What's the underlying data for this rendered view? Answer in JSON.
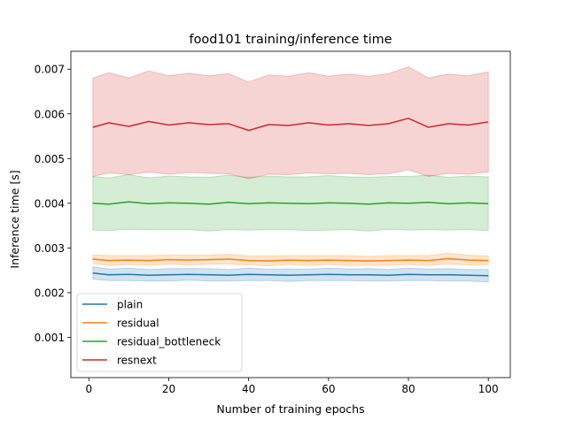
{
  "chart_data": {
    "type": "line",
    "title": "food101 training/inference time",
    "xlabel": "Number of training epochs",
    "ylabel": "Inference time [s]",
    "xlim": [
      -4.5,
      105.5
    ],
    "ylim": [
      0.0001,
      0.0074
    ],
    "xticks": [
      0,
      20,
      40,
      60,
      80,
      100
    ],
    "yticks": [
      0.001,
      0.002,
      0.003,
      0.004,
      0.005,
      0.006,
      0.007
    ],
    "xtick_labels": [
      "0",
      "20",
      "40",
      "60",
      "80",
      "100"
    ],
    "ytick_labels": [
      "0.001",
      "0.002",
      "0.003",
      "0.004",
      "0.005",
      "0.006",
      "0.007"
    ],
    "legend_position": "lower-left",
    "grid": false,
    "shaded_band": "per-series spread around the mean line",
    "x": [
      1,
      5,
      10,
      15,
      20,
      25,
      30,
      35,
      40,
      45,
      50,
      55,
      60,
      65,
      70,
      75,
      80,
      85,
      90,
      95,
      100
    ],
    "series": [
      {
        "name": "plain",
        "color": "#1f77b4",
        "values": [
          0.00244,
          0.0024,
          0.00241,
          0.00239,
          0.0024,
          0.00241,
          0.0024,
          0.00239,
          0.00241,
          0.0024,
          0.00239,
          0.0024,
          0.00241,
          0.0024,
          0.0024,
          0.00239,
          0.00241,
          0.0024,
          0.0024,
          0.00239,
          0.00238
        ],
        "band_halfwidth": [
          0.00014,
          0.00013,
          0.00014,
          0.00013,
          0.00014,
          0.00013,
          0.00014,
          0.00013,
          0.00014,
          0.00013,
          0.00014,
          0.00013,
          0.00014,
          0.00013,
          0.00014,
          0.00013,
          0.00014,
          0.00013,
          0.00014,
          0.00013,
          0.00014
        ]
      },
      {
        "name": "residual",
        "color": "#ff7f0e",
        "values": [
          0.00275,
          0.00272,
          0.00273,
          0.00272,
          0.00274,
          0.00273,
          0.00274,
          0.00275,
          0.00272,
          0.00271,
          0.00273,
          0.00272,
          0.00273,
          0.00272,
          0.00271,
          0.00272,
          0.00273,
          0.00272,
          0.00276,
          0.00273,
          0.00272
        ],
        "band_halfwidth": [
          0.0001,
          0.00011,
          0.0001,
          0.00011,
          0.0001,
          0.00011,
          0.0001,
          0.00011,
          0.0001,
          0.00011,
          0.0001,
          0.00011,
          0.0001,
          0.00011,
          0.0001,
          0.00011,
          0.0001,
          0.00011,
          0.00012,
          0.00011,
          0.0001
        ]
      },
      {
        "name": "residual_bottleneck",
        "color": "#2ca02c",
        "values": [
          0.004,
          0.00398,
          0.00403,
          0.00399,
          0.00401,
          0.004,
          0.00398,
          0.00402,
          0.00399,
          0.00401,
          0.004,
          0.00399,
          0.00401,
          0.004,
          0.00398,
          0.00401,
          0.004,
          0.00402,
          0.00399,
          0.00401,
          0.00399
        ],
        "band_halfwidth": [
          0.0006,
          0.00059,
          0.00061,
          0.00058,
          0.0006,
          0.00059,
          0.0006,
          0.00061,
          0.00059,
          0.0006,
          0.00059,
          0.0006,
          0.00061,
          0.00059,
          0.0006,
          0.00059,
          0.0006,
          0.00061,
          0.00059,
          0.0006,
          0.0006
        ]
      },
      {
        "name": "resnext",
        "color": "#d62728",
        "values": [
          0.0057,
          0.0058,
          0.00572,
          0.00583,
          0.00575,
          0.0058,
          0.00576,
          0.00578,
          0.00563,
          0.00576,
          0.00574,
          0.0058,
          0.00575,
          0.00578,
          0.00574,
          0.00578,
          0.0059,
          0.0057,
          0.00578,
          0.00575,
          0.00582
        ],
        "band_halfwidth": [
          0.0011,
          0.00112,
          0.00108,
          0.00113,
          0.0011,
          0.00111,
          0.00109,
          0.00112,
          0.00108,
          0.00111,
          0.0011,
          0.00112,
          0.00109,
          0.00111,
          0.0011,
          0.00112,
          0.00115,
          0.0011,
          0.00111,
          0.0011,
          0.00112
        ]
      }
    ]
  }
}
